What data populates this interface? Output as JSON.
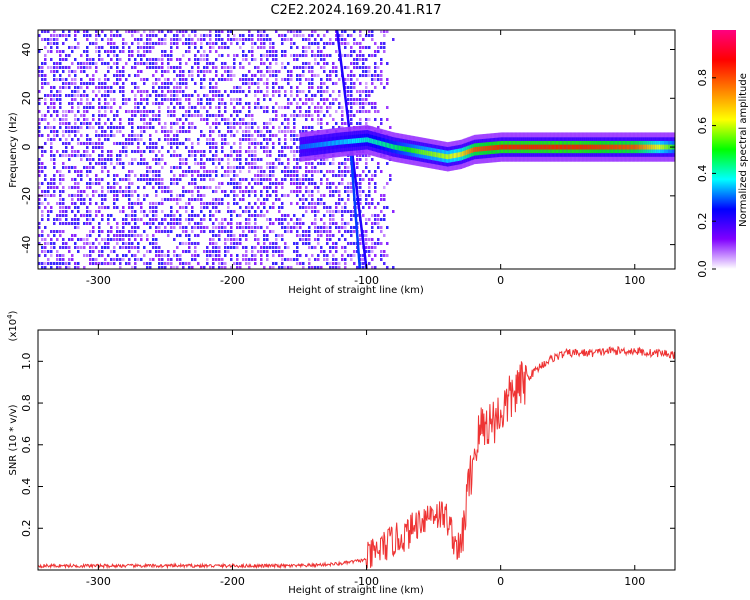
{
  "title": "C2E2.2024.169.20.41.R17",
  "chart_data": [
    {
      "type": "heatmap",
      "xlabel": "Height of straight line (km)",
      "ylabel": "Frequency (Hz)",
      "xlim": [
        -345,
        130
      ],
      "ylim": [
        -50,
        48
      ],
      "x_ticks": [
        -300,
        -200,
        -100,
        0,
        100
      ],
      "y_ticks": [
        -40,
        -20,
        0,
        20,
        40
      ],
      "colorbar": {
        "label": "Normalized spectral amplitude",
        "range": [
          0,
          1
        ],
        "ticks": [
          0.0,
          0.2,
          0.4,
          0.6,
          0.8
        ],
        "colormap": [
          "#ffffff",
          "#8000ff",
          "#0000ff",
          "#00ffff",
          "#00ff00",
          "#ffff00",
          "#ff8000",
          "#ff0000",
          "#ff0080"
        ]
      },
      "ridge": {
        "description": "dominant frequency track",
        "x": [
          -150,
          -120,
          -100,
          -80,
          -60,
          -40,
          -30,
          -20,
          0,
          20,
          60,
          100,
          130
        ],
        "y": [
          0,
          2,
          3,
          0,
          -2,
          -4,
          -3,
          -1,
          0,
          0,
          0,
          0,
          0
        ],
        "amplitude": [
          0.3,
          0.35,
          0.4,
          0.45,
          0.55,
          0.6,
          0.65,
          0.8,
          0.85,
          0.85,
          0.85,
          0.8,
          0.5
        ]
      }
    },
    {
      "type": "line",
      "xlabel": "Height of straight line (km)",
      "ylabel": "SNR (10 * v/v)",
      "y_scale_label": "(x10",
      "y_scale_exp": "4",
      "y_scale_close": ")",
      "xlim": [
        -345,
        130
      ],
      "ylim": [
        0,
        1.15
      ],
      "x_ticks": [
        -300,
        -200,
        -100,
        0,
        100
      ],
      "y_ticks": [
        0.2,
        0.4,
        0.6,
        0.8,
        1.0
      ],
      "series": [
        {
          "color": "#ee3333",
          "x": [
            -345,
            -300,
            -250,
            -200,
            -150,
            -120,
            -100,
            -90,
            -80,
            -70,
            -60,
            -50,
            -40,
            -35,
            -30,
            -25,
            -20,
            -15,
            -10,
            -5,
            0,
            5,
            10,
            15,
            20,
            30,
            40,
            50,
            60,
            70,
            80,
            90,
            100,
            110,
            120,
            130
          ],
          "y": [
            0.02,
            0.02,
            0.02,
            0.02,
            0.02,
            0.03,
            0.05,
            0.1,
            0.14,
            0.17,
            0.24,
            0.28,
            0.25,
            0.15,
            0.08,
            0.35,
            0.55,
            0.68,
            0.7,
            0.72,
            0.75,
            0.8,
            0.85,
            0.88,
            0.92,
            0.98,
            1.02,
            1.04,
            1.04,
            1.04,
            1.05,
            1.05,
            1.05,
            1.04,
            1.04,
            1.03
          ]
        }
      ]
    }
  ]
}
